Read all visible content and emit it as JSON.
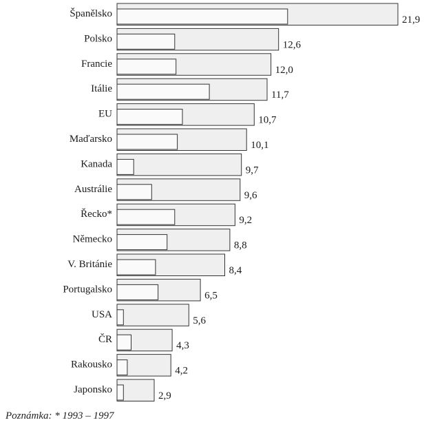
{
  "chart_data": {
    "type": "bar",
    "orientation": "horizontal",
    "categories": [
      "Španělsko",
      "Polsko",
      "Francie",
      "Itálie",
      "EU",
      "Maďarsko",
      "Kanada",
      "Austrálie",
      "Řecko*",
      "Německo",
      "V. Británie",
      "Portugalsko",
      "USA",
      "ČR",
      "Rakousko",
      "Japonsko"
    ],
    "value_labels": [
      "21,9",
      "12,6",
      "12,0",
      "11,7",
      "10,7",
      "10,1",
      "9,7",
      "9,6",
      "9,2",
      "8,8",
      "8,4",
      "6,5",
      "5,6",
      "4,3",
      "4,2",
      "2,9"
    ],
    "series": [
      {
        "values": [
          21.9,
          12.6,
          12.0,
          11.7,
          10.7,
          10.1,
          9.7,
          9.6,
          9.2,
          8.8,
          8.4,
          6.5,
          5.6,
          4.3,
          4.2,
          2.9
        ]
      },
      {
        "values": [
          13.3,
          4.5,
          4.6,
          7.2,
          5.1,
          4.7,
          1.3,
          2.7,
          4.5,
          3.9,
          3.0,
          3.2,
          0.5,
          1.1,
          0.8,
          0.5
        ]
      }
    ],
    "xlim": [
      0,
      22.0
    ],
    "grid": false,
    "legend": "none",
    "colors": {
      "outer_fill": "#efefef",
      "inner_fill": "#fafafa",
      "stroke": "#333333"
    }
  },
  "note": "Poznámka: * 1993 – 1997"
}
